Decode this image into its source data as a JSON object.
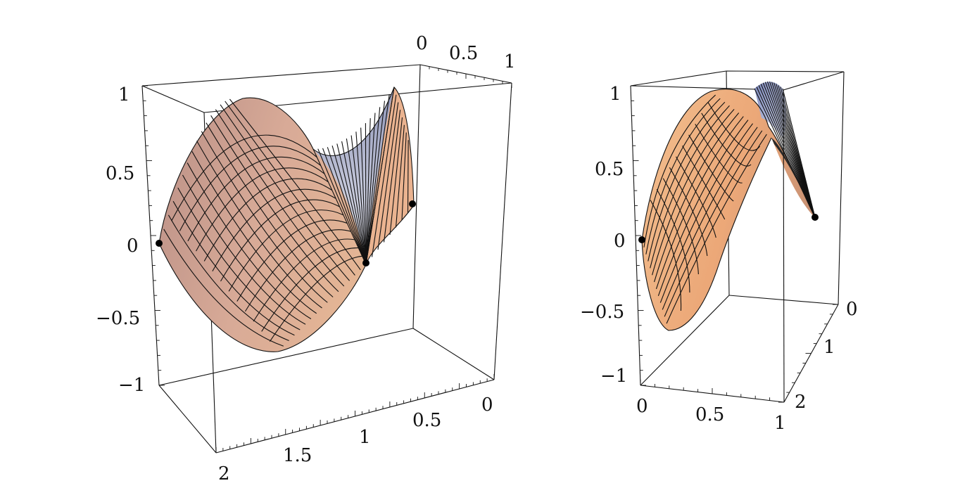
{
  "chart_data": [
    {
      "type": "surface3d",
      "surface": "saddle",
      "x_ticks": [
        "0",
        "0.5",
        "1"
      ],
      "y_ticks": [
        "0",
        "0.5",
        "1",
        "1.5",
        "2"
      ],
      "z_ticks": [
        "-1",
        "-0.5",
        "0",
        "0.5",
        "1"
      ],
      "xlim": [
        0,
        1
      ],
      "ylim": [
        0,
        2
      ],
      "zlim": [
        -1,
        1
      ],
      "points": [
        {
          "x": 0,
          "y": 2,
          "z": 0
        },
        {
          "x": 1,
          "y": 1,
          "z": -0.15
        },
        {
          "x": 0.5,
          "y": 0,
          "z": 0.25
        }
      ],
      "colors": {
        "surface": "#d9a48e",
        "surface_light": "#e8c2b0",
        "surface_shadow": "#a47a6f",
        "pole": "#9ba6c8",
        "edge": "#111111"
      }
    },
    {
      "type": "surface3d",
      "surface": "arch",
      "x_ticks": [
        "0",
        "0.5",
        "1"
      ],
      "y_ticks": [
        "0",
        "1",
        "2"
      ],
      "z_ticks": [
        "-1",
        "-0.5",
        "0",
        "0.5",
        "1"
      ],
      "xlim": [
        0,
        1
      ],
      "ylim": [
        0,
        2
      ],
      "zlim": [
        -1,
        1
      ],
      "points": [
        {
          "x": 0,
          "y": 2,
          "z": 0
        },
        {
          "x": 1,
          "y": 0,
          "z": 0.15
        }
      ],
      "colors": {
        "surface": "#eeb07e",
        "surface_light": "#f6c99e",
        "surface_shadow": "#c78a5e",
        "pole": "#8f9bc4",
        "edge": "#111111"
      }
    }
  ]
}
